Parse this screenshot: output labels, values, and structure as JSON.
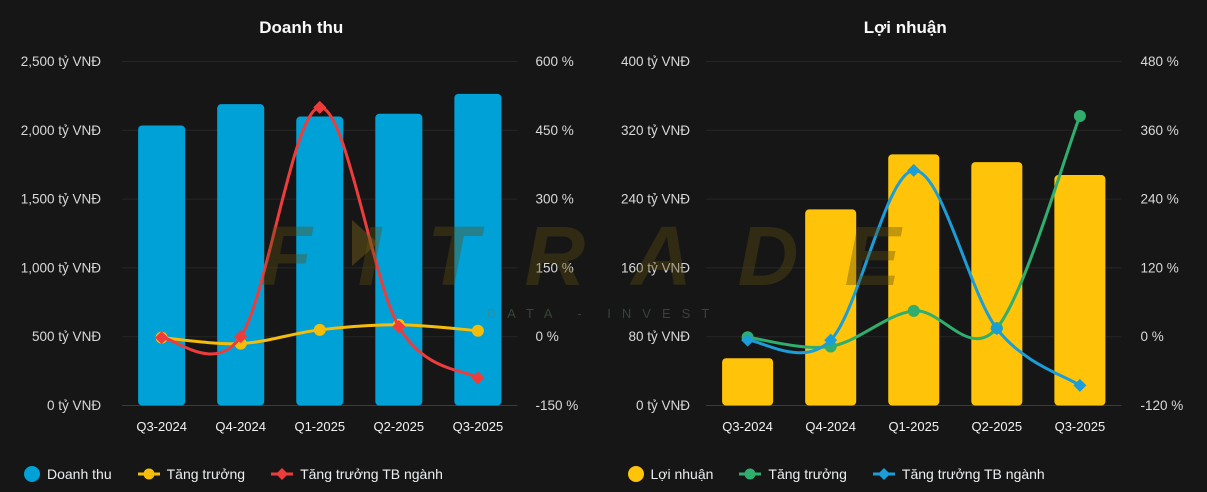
{
  "watermark": {
    "brand": "FITRADE",
    "tagline": "DATA  -  INVEST"
  },
  "chart_data": [
    {
      "type": "bar",
      "subtype": "combo-bar-lines",
      "title": "Doanh thu",
      "categories": [
        "Q3-2024",
        "Q4-2024",
        "Q1-2025",
        "Q2-2025",
        "Q3-2025"
      ],
      "left_axis": {
        "unit": "tỷ VNĐ",
        "min": 0,
        "max": 2500,
        "step": 500,
        "tick_labels": [
          "2,500 tỷ VNĐ",
          "2,000 tỷ VNĐ",
          "1,500 tỷ VNĐ",
          "1,000 tỷ VNĐ",
          "500 tỷ VNĐ",
          "0 tỷ VNĐ"
        ]
      },
      "right_axis": {
        "unit": "%",
        "min": -150,
        "max": 600,
        "step": 150,
        "tick_labels": [
          "600 %",
          "450 %",
          "300 %",
          "150 %",
          "0 %",
          "-150 %"
        ]
      },
      "grid": true,
      "legend_position": "bottom-left",
      "series": [
        {
          "name": "Doanh thu",
          "type": "bar",
          "axis": "left",
          "color": "#00a1d6",
          "marker": "circle",
          "values": [
            2035,
            2190,
            2100,
            2120,
            2265
          ]
        },
        {
          "name": "Tăng trưởng",
          "type": "line",
          "axis": "right",
          "color": "#f5bd0a",
          "marker": "circle",
          "values": [
            -2,
            -15,
            15,
            26,
            13
          ]
        },
        {
          "name": "Tăng trưởng TB ngành",
          "type": "line",
          "axis": "right",
          "color": "#ee3c3c",
          "marker": "diamond",
          "values": [
            -2,
            0,
            500,
            22,
            -90
          ]
        }
      ]
    },
    {
      "type": "bar",
      "subtype": "combo-bar-lines",
      "title": "Lợi nhuận",
      "categories": [
        "Q3-2024",
        "Q4-2024",
        "Q1-2025",
        "Q2-2025",
        "Q3-2025"
      ],
      "left_axis": {
        "unit": "tỷ VNĐ",
        "min": 0,
        "max": 400,
        "step": 80,
        "tick_labels": [
          "400 tỷ VNĐ",
          "320 tỷ VNĐ",
          "240 tỷ VNĐ",
          "160 tỷ VNĐ",
          "80 tỷ VNĐ",
          "0 tỷ VNĐ"
        ]
      },
      "right_axis": {
        "unit": "%",
        "min": -120,
        "max": 480,
        "step": 120,
        "tick_labels": [
          "480 %",
          "360 %",
          "240 %",
          "120 %",
          "0 %",
          "-120 %"
        ]
      },
      "grid": true,
      "legend_position": "bottom-left",
      "series": [
        {
          "name": "Lợi nhuận",
          "type": "bar",
          "axis": "left",
          "color": "#ffc409",
          "marker": "circle",
          "values": [
            55,
            228,
            292,
            283,
            268
          ]
        },
        {
          "name": "Tăng trưởng",
          "type": "line",
          "axis": "right",
          "color": "#2fae6d",
          "marker": "circle",
          "values": [
            -1,
            -17,
            45,
            15,
            385
          ]
        },
        {
          "name": "Tăng trưởng TB ngành",
          "type": "line",
          "axis": "right",
          "color": "#1b9dd9",
          "marker": "diamond",
          "values": [
            -6,
            -6,
            290,
            14,
            -85
          ]
        }
      ]
    }
  ],
  "colors": {
    "background": "#161616",
    "gridline": "#262626",
    "axis_line": "#3b3b3b",
    "tick_text": "#d9d9d9",
    "title_text": "#fafafa",
    "legend_text": "#eceff1"
  }
}
